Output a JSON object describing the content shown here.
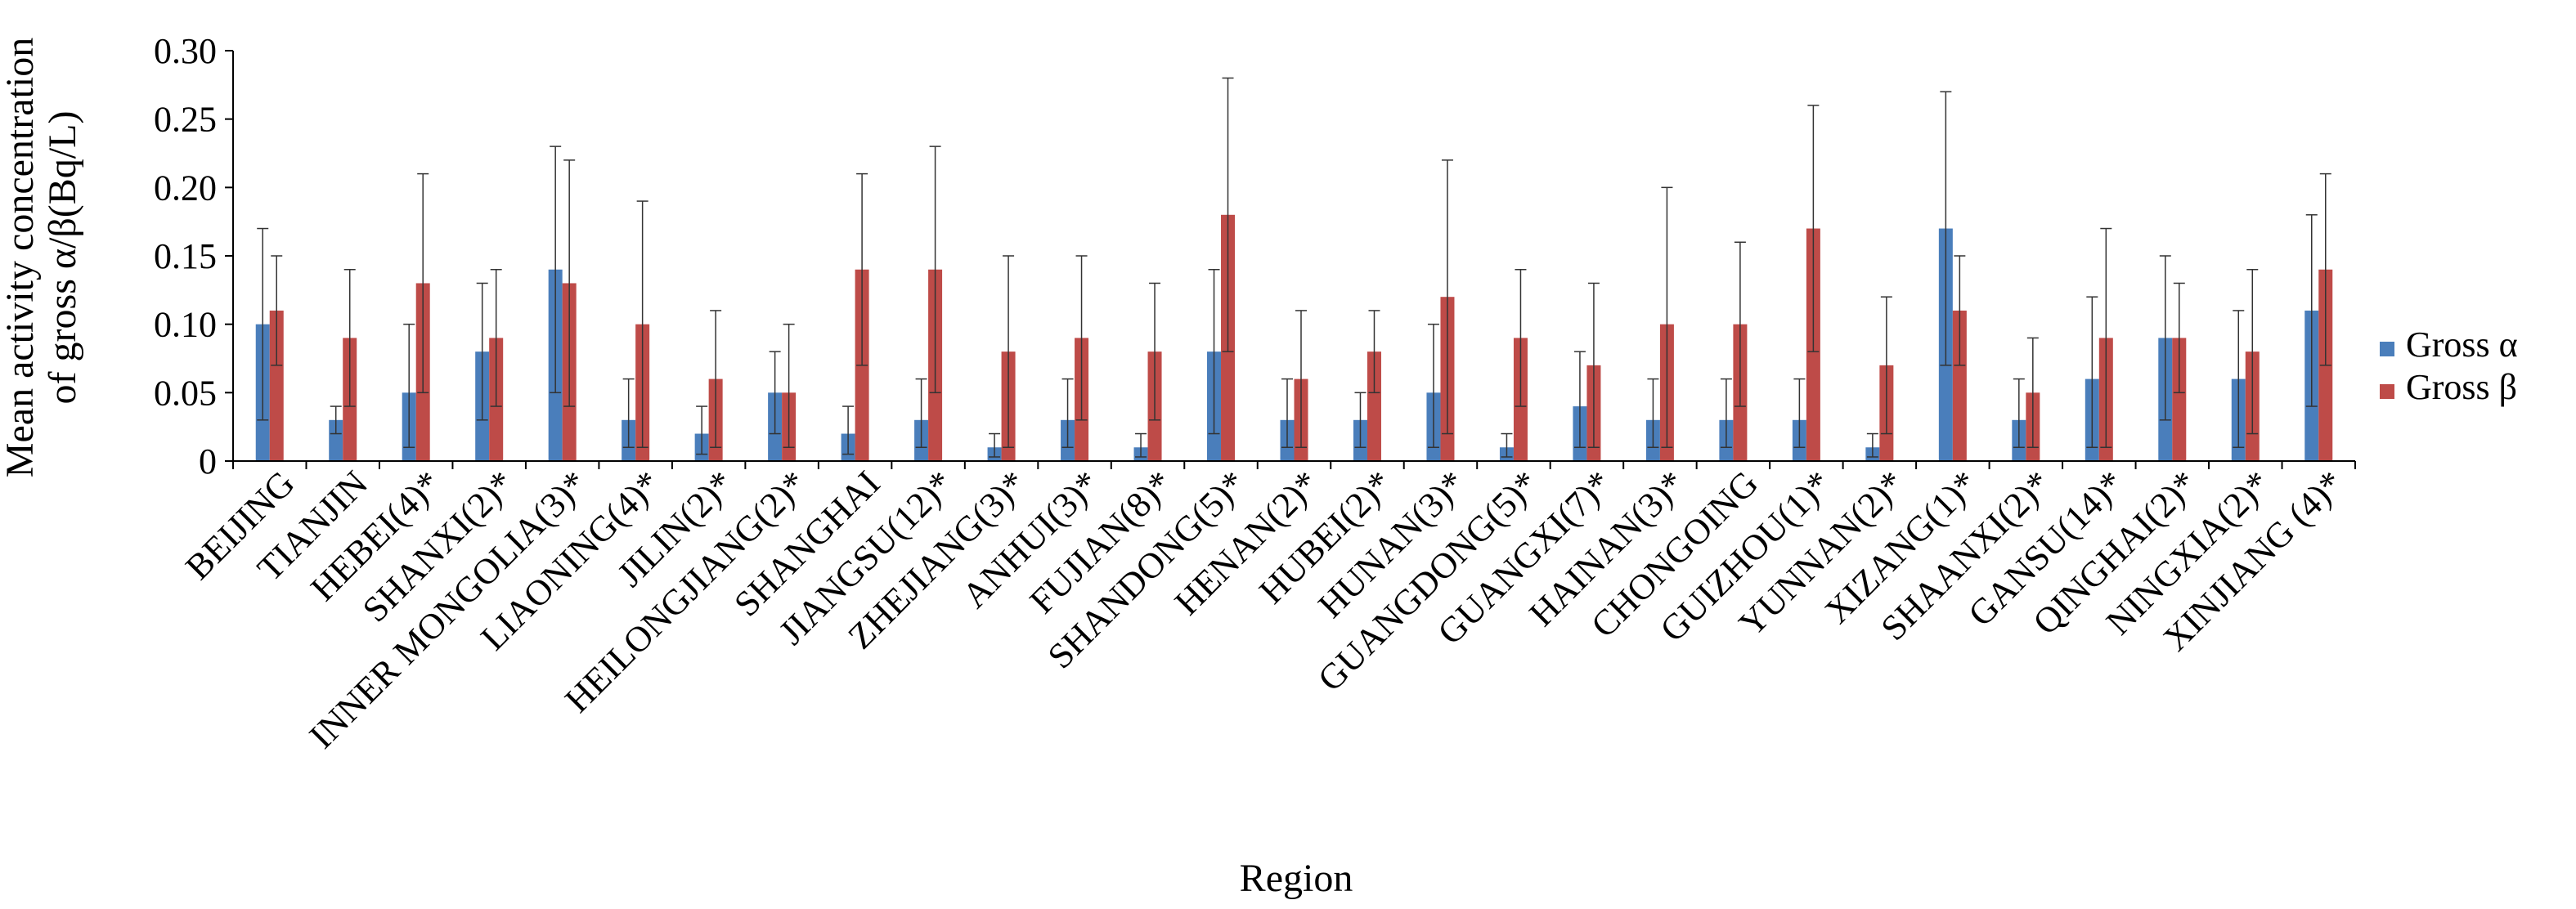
{
  "chart_data": {
    "type": "bar",
    "title": "",
    "ylabel_lines": [
      "Mean activity concentration",
      "of gross α/β(Bq/L)"
    ],
    "xlabel": "Region",
    "ylim": [
      0,
      0.3
    ],
    "yticks": [
      "0",
      "0.05",
      "0.10",
      "0.15",
      "0.20",
      "0.25",
      "0.30"
    ],
    "grid": false,
    "legend_position": "right",
    "categories": [
      "BEIJING",
      "TIANJIN",
      "HEBEI(4)*",
      "SHANXI(2)*",
      "INNER MONGOLIA(3)*",
      "LIAONING(4)*",
      "JILIN(2)*",
      "HEILONGJIANG(2)*",
      "SHANGHAI",
      "JIANGSU(12)*",
      "ZHEJIANG(3)*",
      "ANHUI(3)*",
      "FUJIAN(8)*",
      "SHANDONG(5)*",
      "HENAN(2)*",
      "HUBEI(2)*",
      "HUNAN(3)*",
      "GUANGDONG(5)*",
      "GUANGXI(7)*",
      "HAINAN(3)*",
      "CHONGOING",
      "GUIZHOU(1)*",
      "YUNNAN(2)*",
      "XIZANG(1)*",
      "SHAANXI(2)*",
      "GANSU(14)*",
      "QINGHAI(2)*",
      "NINGXIA(2)*",
      "XINJIANG (4)*"
    ],
    "series": [
      {
        "name": "Gross α",
        "color": "#4a7ebb",
        "values": [
          0.1,
          0.03,
          0.05,
          0.08,
          0.14,
          0.03,
          0.02,
          0.05,
          0.02,
          0.03,
          0.01,
          0.03,
          0.01,
          0.08,
          0.03,
          0.03,
          0.05,
          0.01,
          0.04,
          0.03,
          0.03,
          0.03,
          0.01,
          0.17,
          0.03,
          0.06,
          0.09,
          0.06,
          0.11
        ],
        "error_high": [
          0.17,
          0.04,
          0.1,
          0.13,
          0.23,
          0.06,
          0.04,
          0.08,
          0.04,
          0.06,
          0.02,
          0.06,
          0.02,
          0.14,
          0.06,
          0.05,
          0.1,
          0.02,
          0.08,
          0.06,
          0.06,
          0.06,
          0.02,
          0.27,
          0.06,
          0.12,
          0.15,
          0.11,
          0.18
        ],
        "error_low": [
          0.03,
          0.02,
          0.01,
          0.03,
          0.05,
          0.01,
          0.005,
          0.02,
          0.005,
          0.01,
          0.003,
          0.01,
          0.003,
          0.02,
          0.01,
          0.01,
          0.01,
          0.003,
          0.01,
          0.01,
          0.01,
          0.01,
          0.003,
          0.07,
          0.01,
          0.01,
          0.03,
          0.01,
          0.04
        ]
      },
      {
        "name": "Gross β",
        "color": "#be4b48",
        "values": [
          0.11,
          0.09,
          0.13,
          0.09,
          0.13,
          0.1,
          0.06,
          0.05,
          0.14,
          0.14,
          0.08,
          0.09,
          0.08,
          0.18,
          0.06,
          0.08,
          0.12,
          0.09,
          0.07,
          0.1,
          0.1,
          0.17,
          0.07,
          0.11,
          0.05,
          0.09,
          0.09,
          0.08,
          0.14
        ],
        "error_high": [
          0.15,
          0.14,
          0.21,
          0.14,
          0.22,
          0.19,
          0.11,
          0.1,
          0.21,
          0.23,
          0.15,
          0.15,
          0.13,
          0.28,
          0.11,
          0.11,
          0.22,
          0.14,
          0.13,
          0.2,
          0.16,
          0.26,
          0.12,
          0.15,
          0.09,
          0.17,
          0.13,
          0.14,
          0.21
        ],
        "error_low": [
          0.07,
          0.04,
          0.05,
          0.04,
          0.04,
          0.01,
          0.01,
          0.01,
          0.07,
          0.05,
          0.01,
          0.03,
          0.03,
          0.08,
          0.01,
          0.05,
          0.02,
          0.04,
          0.01,
          0.01,
          0.04,
          0.08,
          0.02,
          0.07,
          0.01,
          0.01,
          0.05,
          0.02,
          0.07
        ]
      }
    ]
  }
}
